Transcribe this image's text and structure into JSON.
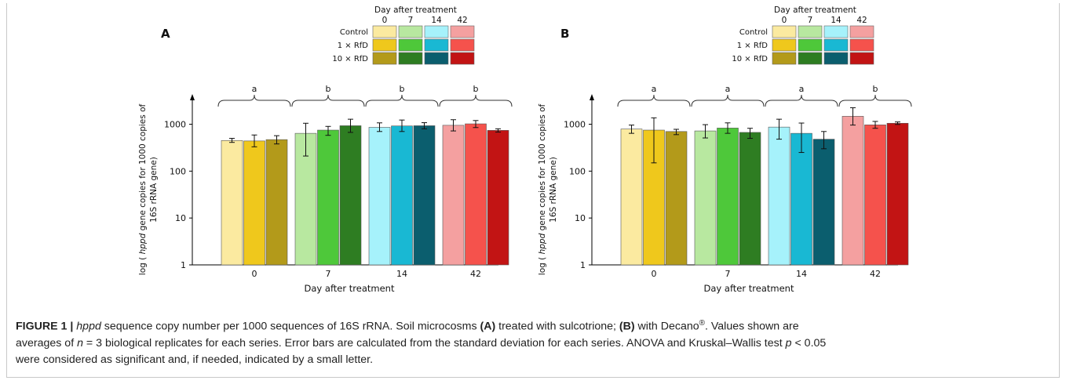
{
  "figure": {
    "legend": {
      "title": "Day after treatment",
      "days": [
        "0",
        "7",
        "14",
        "42"
      ],
      "rows": [
        "Control",
        "1 × RfD",
        "10 × RfD"
      ],
      "colors": {
        "0": [
          "#fbeaa0",
          "#efc81c",
          "#b39a1a"
        ],
        "7": [
          "#b8e8a0",
          "#4ec83a",
          "#2e7d22"
        ],
        "14": [
          "#a6f2fb",
          "#19b8d3",
          "#0b5e6e"
        ],
        "42": [
          "#f4a0a0",
          "#f5524c",
          "#c21414"
        ]
      }
    },
    "caption": {
      "label": "FIGURE 1 |",
      "gene": "hppd",
      "line1_rest": " sequence copy number per 1000 sequences of 16S rRNA. Soil microcosms ",
      "a_label": "(A)",
      "a_text": " treated with sulcotrione; ",
      "b_label": "(B)",
      "b_text": " with Decano",
      "reg": "®",
      "line1_end": ". Values shown are",
      "line2": "averages of ",
      "n_var": "n",
      "line2_mid": " = 3 biological replicates for each series. Error bars are calculated from the standard deviation for each series. ANOVA and Kruskal–Wallis test ",
      "p_var": "p",
      "line2_end": " < 0.05",
      "line3": "were considered as significant and, if needed, indicated by a small letter."
    }
  },
  "chart_data": [
    {
      "panel": "A",
      "type": "bar",
      "scale": "log",
      "ylim": [
        1,
        3000
      ],
      "yticks": [
        "1",
        "10",
        "100",
        "1000"
      ],
      "ylabel_pre": "log ( ",
      "ylabel_italic": "hppd",
      "ylabel_post": " gene copies for 1000 copies of",
      "ylabel_line2": "16S rRNA gene)",
      "xlabel": "Day after treatment",
      "categories": [
        "0",
        "7",
        "14",
        "42"
      ],
      "significance": [
        "a",
        "b",
        "b",
        "b"
      ],
      "series": [
        {
          "name": "Control",
          "values": [
            450,
            640,
            860,
            950
          ],
          "err_low": [
            410,
            210,
            700,
            720
          ],
          "err_high": [
            500,
            1050,
            1070,
            1250
          ]
        },
        {
          "name": "1 × RfD",
          "values": [
            440,
            750,
            920,
            1020
          ],
          "err_low": [
            330,
            580,
            700,
            850
          ],
          "err_high": [
            590,
            900,
            1230,
            1200
          ]
        },
        {
          "name": "10 × RfD",
          "values": [
            470,
            930,
            930,
            740
          ],
          "err_low": [
            380,
            670,
            800,
            680
          ],
          "err_high": [
            570,
            1280,
            1080,
            800
          ]
        }
      ],
      "grid": false
    },
    {
      "panel": "B",
      "type": "bar",
      "scale": "log",
      "ylim": [
        1,
        3000
      ],
      "yticks": [
        "1",
        "10",
        "100",
        "1000"
      ],
      "ylabel_pre": "log ( ",
      "ylabel_italic": "hppd",
      "ylabel_post": " gene copies for 1000 copies of",
      "ylabel_line2": "16S rRNA gene)",
      "xlabel": "Day after treatment",
      "categories": [
        "0",
        "7",
        "14",
        "42"
      ],
      "significance": [
        "a",
        "a",
        "a",
        "b"
      ],
      "series": [
        {
          "name": "Control",
          "values": [
            790,
            720,
            870,
            1480
          ],
          "err_low": [
            640,
            510,
            480,
            960
          ],
          "err_high": [
            960,
            980,
            1280,
            2250
          ]
        },
        {
          "name": "1 × RfD",
          "values": [
            750,
            830,
            640,
            970
          ],
          "err_low": [
            150,
            640,
            250,
            820
          ],
          "err_high": [
            1370,
            1070,
            1060,
            1150
          ]
        },
        {
          "name": "10 × RfD",
          "values": [
            700,
            670,
            480,
            1050
          ],
          "err_low": [
            600,
            500,
            300,
            990
          ],
          "err_high": [
            780,
            820,
            700,
            1120
          ]
        }
      ],
      "grid": false
    }
  ]
}
